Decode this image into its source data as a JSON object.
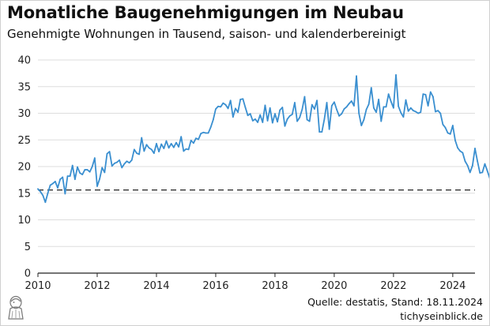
{
  "header": {
    "title": "Monatliche Baugenehmigungen im Neubau",
    "subtitle": "Genehmigte Wohnungen in Tausend, saison- und kalenderbereinigt"
  },
  "footer": {
    "source": "Quelle: destatis, Stand: 18.11.2024",
    "brand": "tichyseinblick.de"
  },
  "colors": {
    "line": "#3a8fd0",
    "reference": "#333333",
    "grid": "#dddddd",
    "axis": "#222222"
  },
  "chart_data": {
    "type": "line",
    "title": "Monatliche Baugenehmigungen im Neubau",
    "subtitle": "Genehmigte Wohnungen in Tausend, saison- und kalenderbereinigt",
    "xlabel": "",
    "ylabel": "",
    "x_ticks": [
      2010,
      2012,
      2014,
      2016,
      2018,
      2020,
      2022,
      2024
    ],
    "y_ticks": [
      0,
      5,
      10,
      15,
      20,
      25,
      30,
      35,
      40
    ],
    "xlim": [
      2010,
      2024.75
    ],
    "ylim": [
      0,
      40
    ],
    "grid": "horizontal",
    "reference_line": {
      "y": 15.6,
      "style": "dashed"
    },
    "series": [
      {
        "x_start": 2010.0,
        "x_step_months": 1,
        "values": [
          15.8,
          15.3,
          14.6,
          13.3,
          15.0,
          16.5,
          16.8,
          17.2,
          16.0,
          17.6,
          18.0,
          14.9,
          18.2,
          18.2,
          20.2,
          17.6,
          19.9,
          18.8,
          18.5,
          19.4,
          19.4,
          19.0,
          20.0,
          21.6,
          16.3,
          17.7,
          19.8,
          18.9,
          22.4,
          22.8,
          20.1,
          20.6,
          20.8,
          21.2,
          19.8,
          20.5,
          21.0,
          20.7,
          21.2,
          23.2,
          22.5,
          22.3,
          25.4,
          22.9,
          24.1,
          23.5,
          23.2,
          22.5,
          24.3,
          22.8,
          24.2,
          23.4,
          24.8,
          23.5,
          24.3,
          23.6,
          24.5,
          23.7,
          25.6,
          22.9,
          23.3,
          23.2,
          24.9,
          24.4,
          25.3,
          25.1,
          26.2,
          26.4,
          26.3,
          26.3,
          27.4,
          28.8,
          30.8,
          31.3,
          31.2,
          31.9,
          31.6,
          30.9,
          32.4,
          29.3,
          30.9,
          30.2,
          32.6,
          32.7,
          31.1,
          29.6,
          29.9,
          28.6,
          28.9,
          28.3,
          29.7,
          28.3,
          31.5,
          28.6,
          31.0,
          28.2,
          29.9,
          28.4,
          30.6,
          31.1,
          27.6,
          28.9,
          29.5,
          29.8,
          32.0,
          28.5,
          29.2,
          30.7,
          33.1,
          28.8,
          28.5,
          31.6,
          30.8,
          32.4,
          26.5,
          26.5,
          28.9,
          32.0,
          27.0,
          31.4,
          32.1,
          30.7,
          29.5,
          29.9,
          30.8,
          31.2,
          31.8,
          32.3,
          31.4,
          37.0,
          30.0,
          27.7,
          28.8,
          30.7,
          31.7,
          34.8,
          31.0,
          30.2,
          32.6,
          28.5,
          31.2,
          31.2,
          33.6,
          32.2,
          31.0,
          37.2,
          31.3,
          30.1,
          29.3,
          32.5,
          30.4,
          31.0,
          30.5,
          30.3,
          30.0,
          30.2,
          33.6,
          33.5,
          31.4,
          34.0,
          33.1,
          30.3,
          30.5,
          30.0,
          27.9,
          27.3,
          26.3,
          26.1,
          27.7,
          24.9,
          23.5,
          22.9,
          22.6,
          21.0,
          20.2,
          18.9,
          20.2,
          23.4,
          21.0,
          18.8,
          18.9,
          20.5,
          19.2,
          17.8,
          17.6,
          17.6,
          15.7,
          18.5,
          15.9
        ]
      }
    ]
  }
}
